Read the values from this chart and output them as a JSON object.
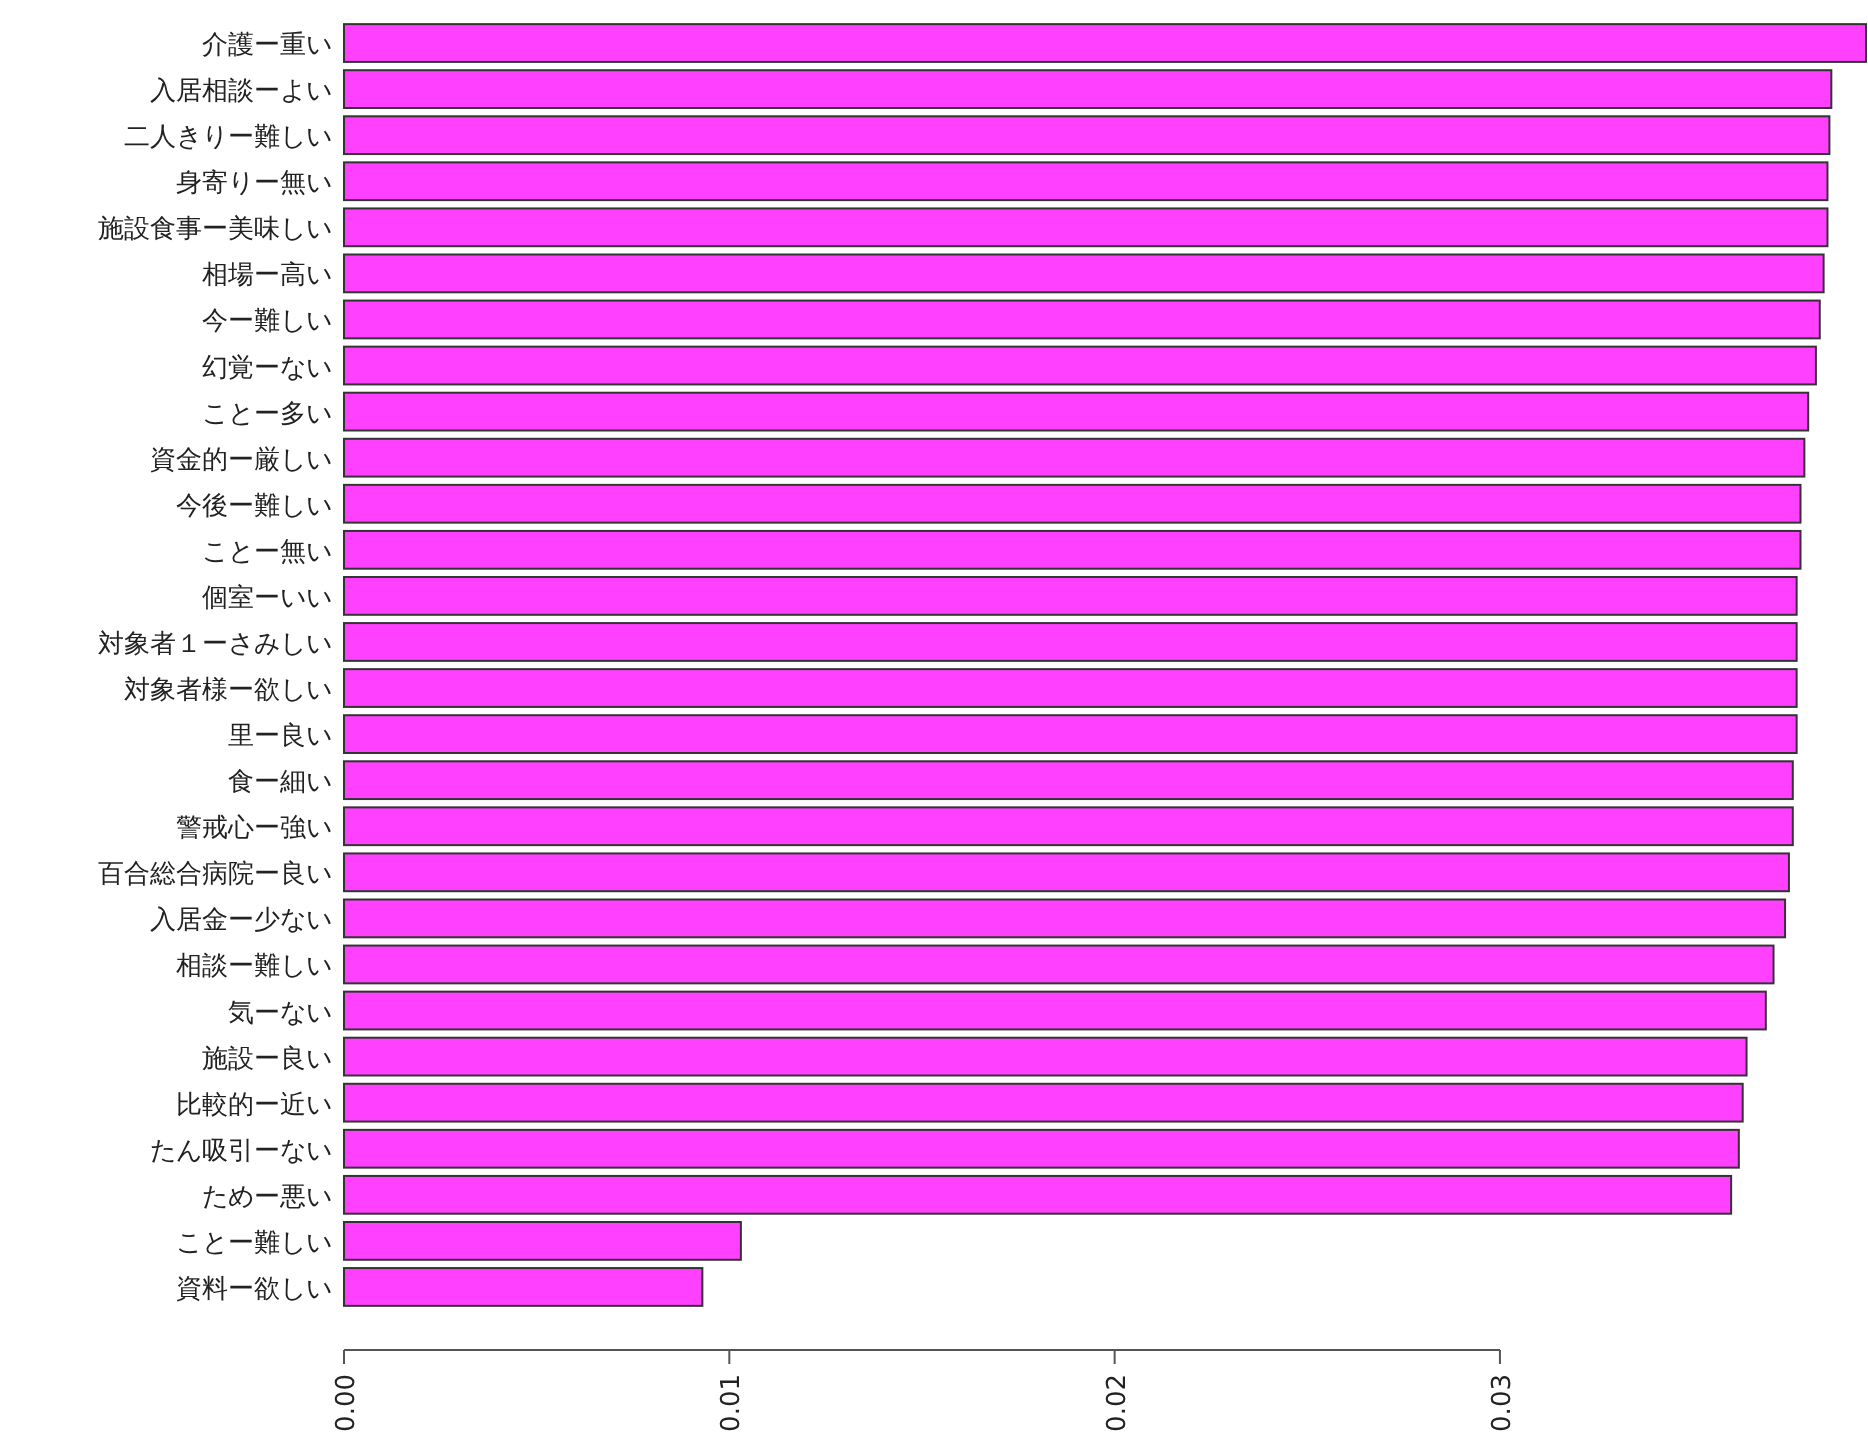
{
  "chart_data": {
    "type": "bar",
    "orientation": "horizontal",
    "color": "#ff40ff",
    "categories": [
      "介護ー重い",
      "入居相談ーよい",
      "二人きりー難しい",
      "身寄りー無い",
      "施設食事ー美味しい",
      "相場ー高い",
      "今ー難しい",
      "幻覚ーない",
      "ことー多い",
      "資金的ー厳しい",
      "今後ー難しい",
      "ことー無い",
      "個室ーいい",
      "対象者１ーさみしい",
      "対象者様ー欲しい",
      "里ー良い",
      "食ー細い",
      "警戒心ー強い",
      "百合総合病院ー良い",
      "入居金ー少ない",
      "相談ー難しい",
      "気ーない",
      "施設ー良い",
      "比較的ー近い",
      "たん吸引ーない",
      "ためー悪い",
      "ことー難しい",
      "資料ー欲しい"
    ],
    "values": [
      0.0395,
      0.0386,
      0.03855,
      0.0385,
      0.0385,
      0.0384,
      0.0383,
      0.0382,
      0.038,
      0.0379,
      0.0378,
      0.0378,
      0.0377,
      0.0377,
      0.0377,
      0.0377,
      0.0376,
      0.0376,
      0.0375,
      0.0374,
      0.0371,
      0.0369,
      0.0364,
      0.0363,
      0.0362,
      0.036,
      0.0103,
      0.0093
    ],
    "xlim": [
      0,
      0.0395
    ],
    "xticks": [
      {
        "value": 0,
        "label": "0.00"
      },
      {
        "value": 0.01,
        "label": "0.01"
      },
      {
        "value": 0.02,
        "label": "0.02"
      },
      {
        "value": 0.03,
        "label": "0.03"
      }
    ]
  }
}
